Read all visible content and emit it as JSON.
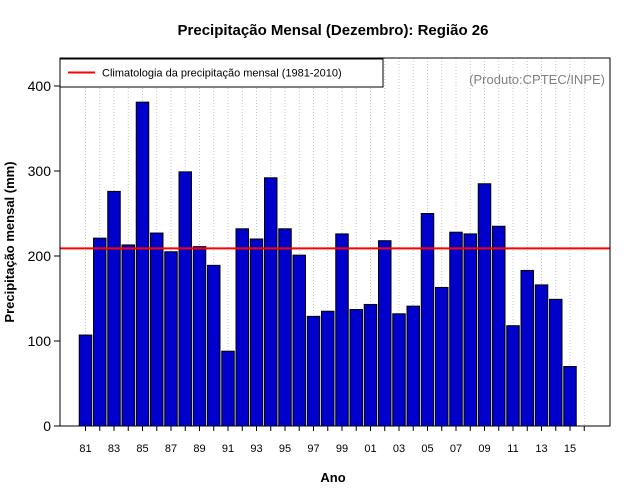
{
  "colors": {
    "bar_fill": "#0000CC",
    "bar_stroke": "#000000",
    "climatology_line": "#FF0000",
    "grid": "#BBBBBB",
    "credit_text": "#808080"
  },
  "chart_data": {
    "type": "bar",
    "title": "Precipitação Mensal (Dezembro): Região 26",
    "xlabel": "Ano",
    "ylabel": "Precipitação mensal (mm)",
    "ylim": [
      0,
      430
    ],
    "yticks": [
      0,
      100,
      200,
      300,
      400
    ],
    "categories": [
      "1981",
      "1982",
      "1983",
      "1984",
      "1985",
      "1986",
      "1987",
      "1988",
      "1989",
      "1990",
      "1991",
      "1992",
      "1993",
      "1994",
      "1995",
      "1996",
      "1997",
      "1998",
      "1999",
      "2000",
      "2001",
      "2002",
      "2003",
      "2004",
      "2005",
      "2006",
      "2007",
      "2008",
      "2009",
      "2010",
      "2011",
      "2012",
      "2013",
      "2014",
      "2015"
    ],
    "xtick_labels": [
      "81",
      "83",
      "85",
      "87",
      "89",
      "91",
      "93",
      "95",
      "97",
      "99",
      "01",
      "03",
      "05",
      "07",
      "09",
      "11",
      "13",
      "15"
    ],
    "values": [
      107,
      221,
      276,
      213,
      381,
      227,
      205,
      299,
      211,
      189,
      88,
      232,
      220,
      292,
      232,
      201,
      129,
      135,
      226,
      137,
      143,
      218,
      132,
      141,
      250,
      163,
      228,
      226,
      285,
      235,
      118,
      183,
      166,
      149,
      70
    ],
    "climatology": 209,
    "legend": {
      "label": "Climatologia da precipitação mensal (1981-2010)",
      "position": "top-left"
    },
    "credit": "(Produto:CPTEC/INPE)",
    "grid": "vertical-dotted"
  }
}
